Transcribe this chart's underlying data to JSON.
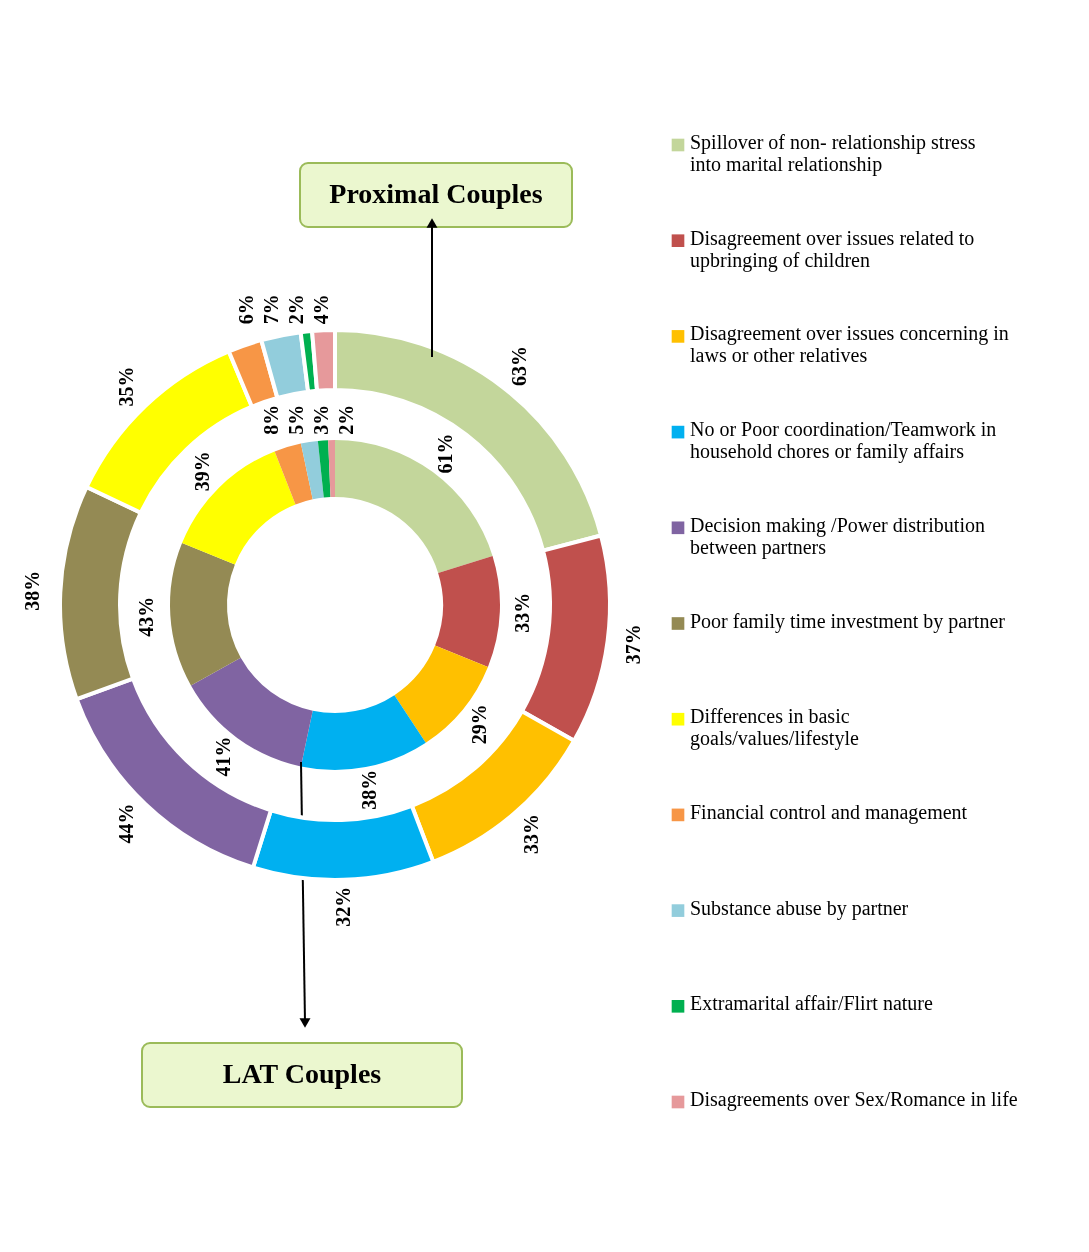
{
  "chart_data": {
    "type": "donut",
    "categories": [
      "Spillover of non- relationship stress into marital relationship",
      "Disagreement over issues related to upbringing of children",
      "Disagreement over issues concerning in laws or other relatives",
      "No or Poor coordination/Teamwork in household chores or family affairs",
      "Decision making /Power distribution between partners",
      "Poor family time investment by partner",
      "Differences in basic goals/values/lifestyle",
      "Financial control and management",
      "Substance abuse by partner",
      "Extramarital affair/Flirt nature",
      "Disagreements over Sex/Romance in life"
    ],
    "colors": [
      "#c3d69b",
      "#c0504d",
      "#ffc000",
      "#00b0f0",
      "#8064a2",
      "#948a54",
      "#ffff00",
      "#f79646",
      "#92cddc",
      "#00b050",
      "#e6999b"
    ],
    "series": [
      {
        "name": "LAT Couples",
        "values": [
          61,
          33,
          29,
          38,
          41,
          43,
          39,
          8,
          5,
          3,
          2
        ],
        "value_labels": [
          "61%",
          "33%",
          "29%",
          "38%",
          "41%",
          "43%",
          "39%",
          "8%",
          "5%",
          "3%",
          "2%"
        ]
      },
      {
        "name": "Proximal Couples",
        "values": [
          63,
          37,
          33,
          32,
          44,
          38,
          35,
          6,
          7,
          2,
          4
        ],
        "value_labels": [
          "63%",
          "37%",
          "33%",
          "32%",
          "44%",
          "38%",
          "35%",
          "6%",
          "7%",
          "2%",
          "4%"
        ]
      }
    ],
    "legend": "right"
  }
}
